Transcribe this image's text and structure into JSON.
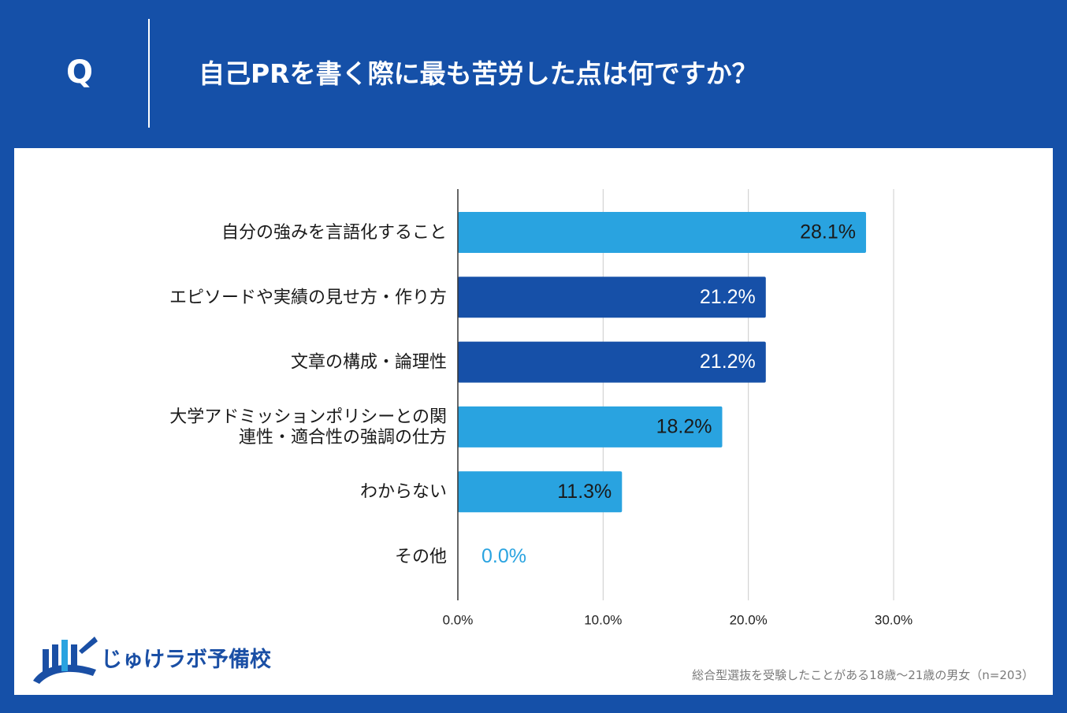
{
  "header": {
    "q_mark": "Q",
    "question": "自己PRを書く際に最も苦労した点は何ですか？"
  },
  "chart_data": {
    "type": "bar",
    "orientation": "horizontal",
    "title": "自己PRを書く際に最も苦労した点は何ですか？",
    "categories": [
      [
        "自分の強みを言語化すること"
      ],
      [
        "エピソードや実績の見せ方・作り方"
      ],
      [
        "文章の構成・論理性"
      ],
      [
        "大学アドミッションポリシーとの関",
        "連性・適合性の強調の仕方"
      ],
      [
        "わからない"
      ],
      [
        "その他"
      ]
    ],
    "values": [
      28.1,
      21.2,
      21.2,
      18.2,
      11.3,
      0.0
    ],
    "value_labels": [
      "28.1%",
      "21.2%",
      "21.2%",
      "18.2%",
      "11.3%",
      "0.0%"
    ],
    "bar_colors": [
      "#29a3e0",
      "#1650a8",
      "#1650a8",
      "#29a3e0",
      "#29a3e0",
      "#29a3e0"
    ],
    "xlim": [
      0,
      30
    ],
    "ticks": [
      0,
      10,
      20,
      30
    ],
    "tick_labels": [
      "0.0%",
      "10.0%",
      "20.0%",
      "30.0%"
    ],
    "grid": true
  },
  "logo": {
    "text": "じゅけラボ予備校"
  },
  "footnote": "総合型選抜を受験したことがある18歳〜21歳の男女（n=203）",
  "colors": {
    "background": "#1550a8",
    "panel": "#ffffff",
    "bar_light": "#29a3e0",
    "bar_dark": "#1650a8",
    "zero_label": "#29a3e0"
  }
}
